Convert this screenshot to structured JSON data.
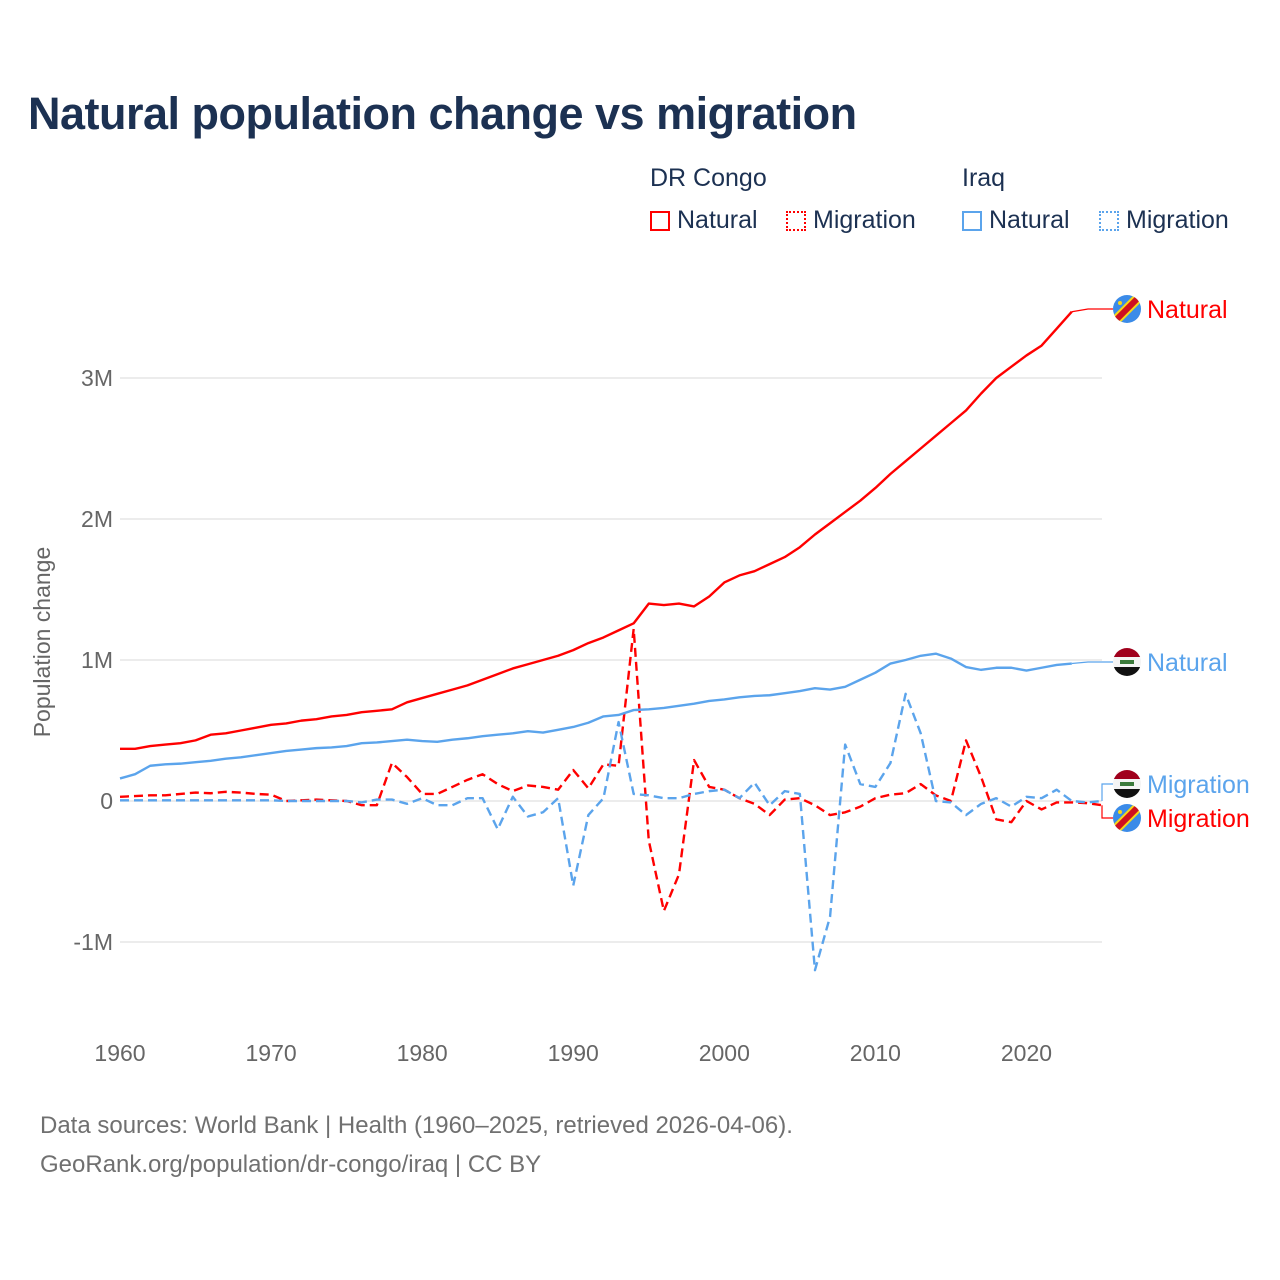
{
  "title": "Natural population change vs migration",
  "legend": {
    "groups": [
      {
        "name": "DR Congo",
        "items": [
          "Natural",
          "Migration"
        ]
      },
      {
        "name": "Iraq",
        "items": [
          "Natural",
          "Migration"
        ]
      }
    ]
  },
  "footer": {
    "line1": "Data sources: World Bank | Health (1960–2025, retrieved 2026-04-06).",
    "line2": "GeoRank.org/population/dr-congo/iraq | CC BY"
  },
  "colors": {
    "drc": "#ff0000",
    "iraq": "#5ba4ec",
    "grid": "#e6e6e6",
    "axis_text": "#666666"
  },
  "chart_data": {
    "type": "line",
    "title": "Natural population change vs migration",
    "xlabel": "",
    "ylabel": "Population change",
    "xlim": [
      1960,
      2025
    ],
    "ylim": [
      -1.3,
      3.6
    ],
    "x_ticks": [
      1960,
      1970,
      1980,
      1990,
      2000,
      2010,
      2020
    ],
    "x_tick_labels": [
      "1960",
      "1970",
      "1980",
      "1990",
      "2000",
      "2010",
      "2020"
    ],
    "y_ticks": [
      -1,
      0,
      1,
      2,
      3
    ],
    "y_tick_labels": [
      "-1M",
      "0",
      "1M",
      "2M",
      "3M"
    ],
    "unit": "millions",
    "grid": true,
    "series": [
      {
        "name": "DR Congo Natural",
        "label": "Natural",
        "country": "DR Congo",
        "color": "#ff0000",
        "dash": "solid",
        "x_start": 1960,
        "values": [
          0.37,
          0.37,
          0.39,
          0.4,
          0.41,
          0.43,
          0.47,
          0.48,
          0.5,
          0.52,
          0.54,
          0.55,
          0.57,
          0.58,
          0.6,
          0.61,
          0.63,
          0.64,
          0.65,
          0.7,
          0.73,
          0.76,
          0.79,
          0.82,
          0.86,
          0.9,
          0.94,
          0.97,
          1.0,
          1.03,
          1.07,
          1.12,
          1.16,
          1.21,
          1.26,
          1.4,
          1.39,
          1.4,
          1.38,
          1.45,
          1.55,
          1.6,
          1.63,
          1.68,
          1.73,
          1.8,
          1.89,
          1.97,
          2.05,
          2.13,
          2.22,
          2.32,
          2.41,
          2.5,
          2.59,
          2.68,
          2.77,
          2.89,
          3.0,
          3.08,
          3.16,
          3.23,
          3.35,
          3.47
        ]
      },
      {
        "name": "DR Congo Migration",
        "label": "Migration",
        "country": "DR Congo",
        "color": "#ff0000",
        "dash": "dashed",
        "x_start": 1960,
        "values": [
          0.03,
          0.035,
          0.04,
          0.04,
          0.05,
          0.06,
          0.055,
          0.065,
          0.06,
          0.05,
          0.045,
          0.0,
          0.005,
          0.01,
          0.005,
          0.0,
          -0.03,
          -0.03,
          0.27,
          0.17,
          0.05,
          0.05,
          0.1,
          0.15,
          0.19,
          0.12,
          0.07,
          0.11,
          0.1,
          0.08,
          0.22,
          0.09,
          0.26,
          0.25,
          1.22,
          -0.28,
          -0.78,
          -0.52,
          0.29,
          0.1,
          0.08,
          0.02,
          -0.02,
          -0.1,
          0.01,
          0.02,
          -0.03,
          -0.1,
          -0.08,
          -0.04,
          0.02,
          0.045,
          0.055,
          0.12,
          0.04,
          0.0,
          0.43,
          0.17,
          -0.13,
          -0.15,
          0.0,
          -0.06,
          -0.01,
          -0.01,
          -0.015,
          -0.03
        ]
      },
      {
        "name": "Iraq Natural",
        "label": "Natural",
        "country": "Iraq",
        "color": "#5ba4ec",
        "dash": "solid",
        "x_start": 1960,
        "values": [
          0.16,
          0.19,
          0.25,
          0.26,
          0.265,
          0.275,
          0.285,
          0.3,
          0.31,
          0.325,
          0.34,
          0.355,
          0.365,
          0.375,
          0.38,
          0.39,
          0.41,
          0.415,
          0.425,
          0.435,
          0.425,
          0.42,
          0.435,
          0.445,
          0.46,
          0.47,
          0.48,
          0.495,
          0.485,
          0.505,
          0.525,
          0.555,
          0.6,
          0.61,
          0.645,
          0.65,
          0.66,
          0.675,
          0.69,
          0.71,
          0.72,
          0.735,
          0.745,
          0.75,
          0.765,
          0.78,
          0.8,
          0.79,
          0.81,
          0.86,
          0.91,
          0.975,
          1.0,
          1.03,
          1.045,
          1.01,
          0.95,
          0.93,
          0.945,
          0.945,
          0.925,
          0.945,
          0.965,
          0.975
        ]
      },
      {
        "name": "Iraq Migration",
        "label": "Migration",
        "country": "Iraq",
        "color": "#5ba4ec",
        "dash": "dashed",
        "x_start": 1960,
        "values": [
          0.005,
          0.005,
          0.005,
          0.005,
          0.005,
          0.005,
          0.005,
          0.005,
          0.005,
          0.005,
          0.005,
          0.0,
          0.0,
          0.0,
          0.0,
          0.0,
          -0.01,
          0.01,
          0.01,
          -0.02,
          0.02,
          -0.03,
          -0.03,
          0.02,
          0.02,
          -0.2,
          0.03,
          -0.11,
          -0.08,
          0.02,
          -0.6,
          -0.1,
          0.02,
          0.56,
          0.05,
          0.04,
          0.02,
          0.02,
          0.05,
          0.07,
          0.08,
          0.02,
          0.13,
          -0.03,
          0.07,
          0.05,
          -1.2,
          -0.82,
          0.4,
          0.12,
          0.1,
          0.27,
          0.76,
          0.48,
          0.0,
          -0.01,
          -0.1,
          -0.02,
          0.02,
          -0.04,
          0.03,
          0.02,
          0.08,
          0.0,
          -0.01,
          0.0
        ]
      }
    ]
  }
}
